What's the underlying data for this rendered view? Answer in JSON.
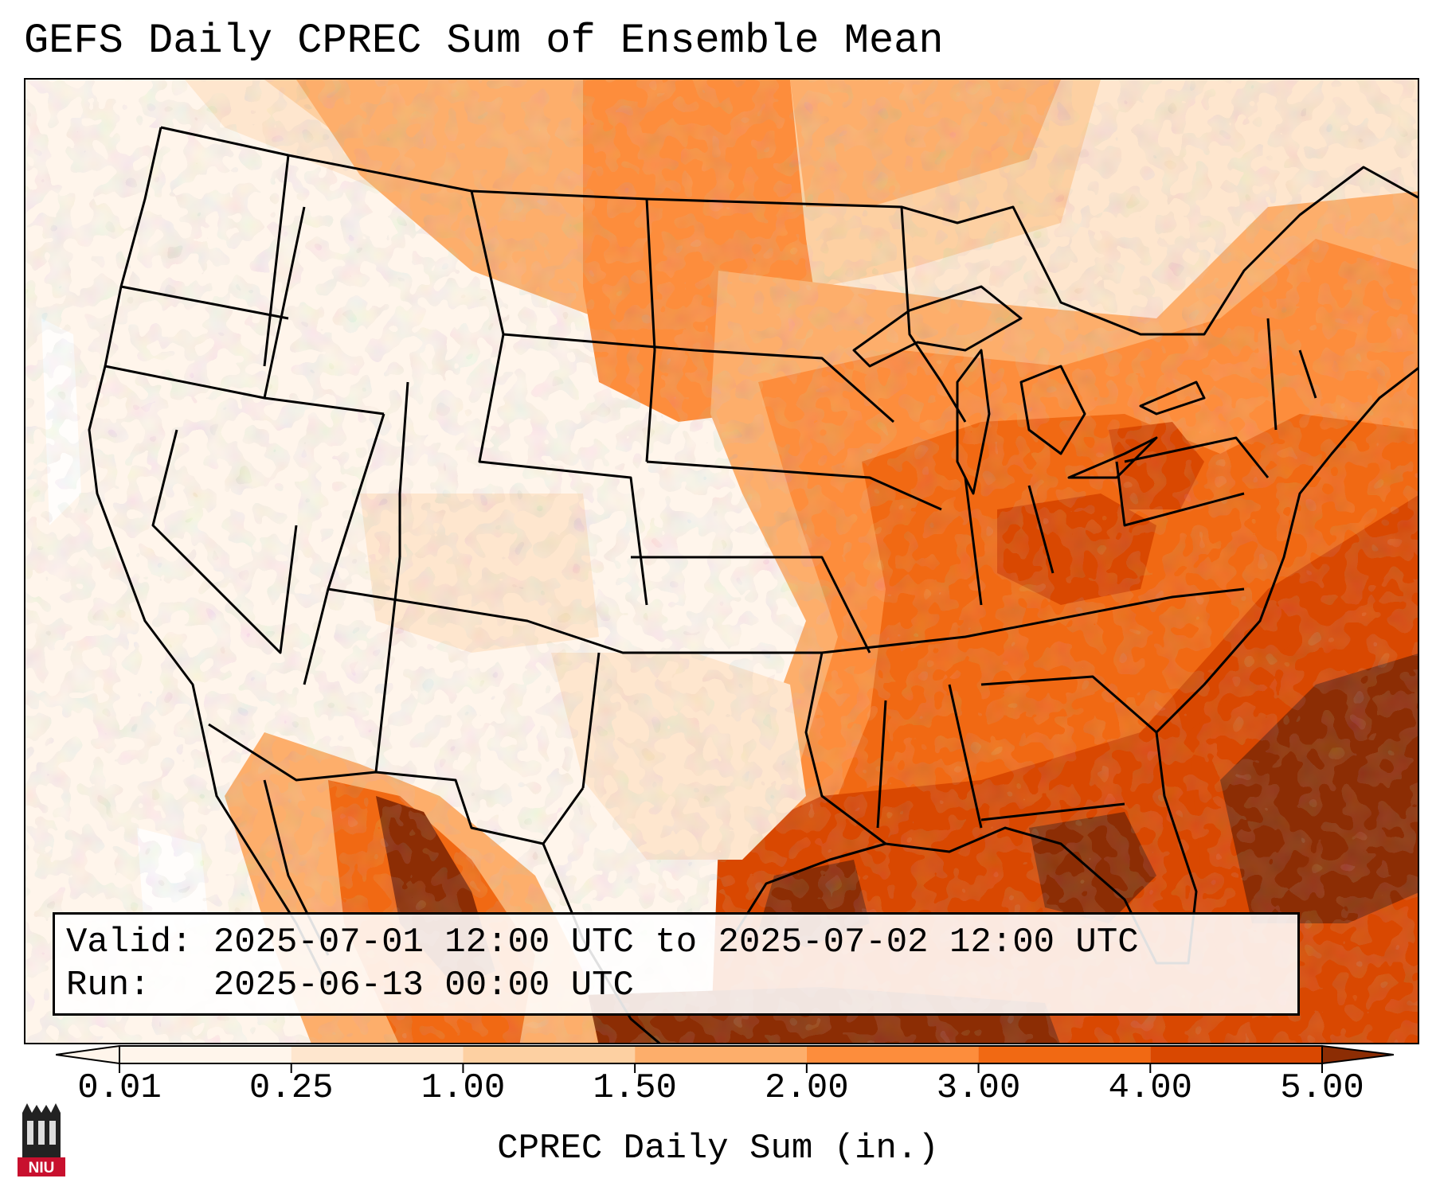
{
  "title": "GEFS Daily CPREC Sum of Ensemble Mean",
  "info": {
    "valid_label": "Valid:",
    "valid_value": "2025-07-01 12:00 UTC to 2025-07-02 12:00 UTC",
    "run_label": "Run:",
    "run_value": "2025-06-13 00:00 UTC"
  },
  "colorbar": {
    "label": "CPREC Daily Sum (in.)",
    "ticks": [
      "0.01",
      "0.25",
      "1.00",
      "1.50",
      "2.00",
      "3.00",
      "4.00",
      "5.00"
    ],
    "colors": [
      "#fff5eb",
      "#fee6ce",
      "#fdd0a2",
      "#fdae6b",
      "#fd8d3c",
      "#f16913",
      "#d94801",
      "#8c2d04"
    ],
    "extend": "both"
  },
  "logo": {
    "text": "NIU",
    "color": "#c8102e"
  }
}
